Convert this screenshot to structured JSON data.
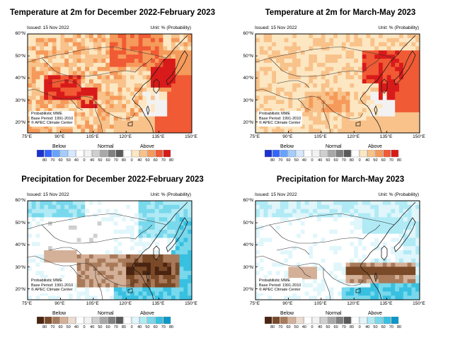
{
  "colors": {
    "below_temp": [
      "#1a33cc",
      "#3366ff",
      "#66a3ff",
      "#a3ccff",
      "#d6e8ff"
    ],
    "below_prcp": [
      "#4a2410",
      "#7a4a28",
      "#a87a5a",
      "#d4b098",
      "#ecdcd0"
    ],
    "normal": [
      "#f2f2f2",
      "#cfcfcf",
      "#a8a8a8",
      "#808080",
      "#5a5a5a"
    ],
    "above_temp": [
      "#fde7c2",
      "#f8c28a",
      "#f59a5a",
      "#f05a34",
      "#d91a1a"
    ],
    "above_prcp": [
      "#e0f6fb",
      "#b0eaf5",
      "#78d8ec",
      "#38c0e0",
      "#0a98c8"
    ]
  },
  "panels": [
    {
      "title": "Temperature at 2m for December 2022-February 2023",
      "issued": "Issued: 15 Nov 2022",
      "unit": "Unit: % (Probability)",
      "variable": "temperature",
      "notes": [
        "Probabilistic MME",
        "Base Period: 1991-2010",
        "© APEC Climate Center"
      ]
    },
    {
      "title": "Temperature at 2m for March-May 2023",
      "issued": "Issued: 15 Nov 2022",
      "unit": "Unit: % (Probability)",
      "variable": "temperature",
      "notes": [
        "Probabilistic MME",
        "Base Period: 1991-2010",
        "© APEC Climate Center"
      ]
    },
    {
      "title": "Precipitation for December 2022-February 2023",
      "issued": "Issued: 15 Nov 2022",
      "unit": "Unit: % (Probability)",
      "variable": "precipitation",
      "notes": [
        "Probabilistic MME",
        "Base Period: 1991-2010",
        "© APEC Climate Center"
      ]
    },
    {
      "title": "Precipitation for March-May 2023",
      "issued": "Issued: 15 Nov 2022",
      "unit": "Unit: % (Probability)",
      "variable": "precipitation",
      "notes": [
        "Probabilistic MME",
        "Base Period: 1991-2010",
        "© APEC Climate Center"
      ]
    }
  ],
  "axes": {
    "lat_labels": [
      "60°N",
      "50°N",
      "40°N",
      "30°N",
      "20°N"
    ],
    "lon_labels": [
      "75°E",
      "90°E",
      "105°E",
      "120°E",
      "135°E",
      "150°E"
    ]
  },
  "colorbar": {
    "below_label": "Below",
    "normal_label": "Normal",
    "above_label": "Above",
    "below_ticks": [
      "80",
      "70",
      "60",
      "50",
      "40"
    ],
    "normal_ticks": [
      "0",
      "40",
      "50",
      "60",
      "70",
      "80"
    ],
    "above_ticks": [
      "0",
      "40",
      "50",
      "60",
      "70",
      "80"
    ]
  }
}
